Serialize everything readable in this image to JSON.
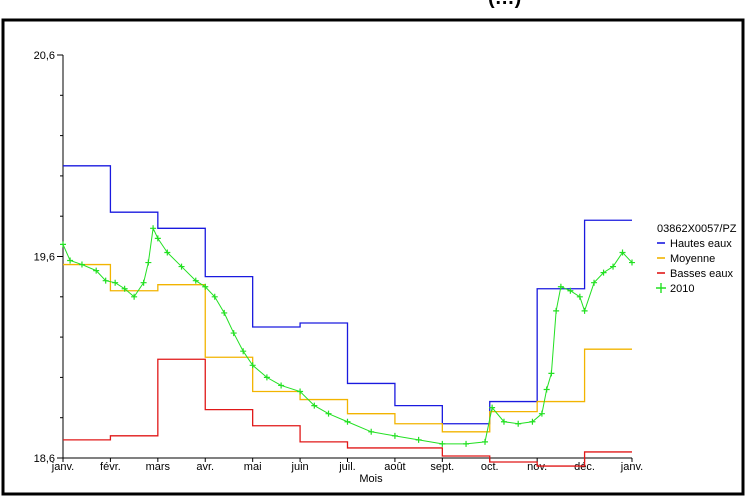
{
  "chart_data": {
    "type": "line",
    "title": "(…)",
    "xlabel": "Mois",
    "ylabel": "",
    "ylim": [
      18.6,
      20.6
    ],
    "yticks": [
      {
        "value": 18.6,
        "label": "18,6"
      },
      {
        "value": 19.6,
        "label": "19,6"
      },
      {
        "value": 20.6,
        "label": "20,6"
      }
    ],
    "x_month_labels": [
      "janv.",
      "févr.",
      "mars",
      "avr.",
      "mai",
      "juin",
      "juil.",
      "août",
      "sept.",
      "oct.",
      "nov.",
      "déc.",
      "janv."
    ],
    "legend_title": "03862X0057/PZ",
    "legend_position": "right",
    "series": [
      {
        "name": "Hautes eaux",
        "color": "#1a1adf",
        "style": "step",
        "x": [
          0,
          1,
          2,
          3,
          4,
          5,
          6,
          7,
          8,
          9,
          10,
          11,
          12
        ],
        "values": [
          20.05,
          19.82,
          19.74,
          19.5,
          19.25,
          19.27,
          18.97,
          18.86,
          18.77,
          18.88,
          19.44,
          19.78,
          19.78
        ]
      },
      {
        "name": "Moyenne",
        "color": "#f2b400",
        "style": "step",
        "x": [
          0,
          1,
          2,
          3,
          4,
          5,
          6,
          7,
          8,
          9,
          10,
          11,
          12
        ],
        "values": [
          19.56,
          19.43,
          19.46,
          19.1,
          18.93,
          18.89,
          18.82,
          18.77,
          18.73,
          18.83,
          18.88,
          19.14,
          19.14
        ]
      },
      {
        "name": "Basses eaux",
        "color": "#e01818",
        "style": "step",
        "x": [
          0,
          1,
          2,
          3,
          4,
          5,
          6,
          7,
          8,
          9,
          10,
          11,
          12
        ],
        "values": [
          18.69,
          18.71,
          19.09,
          18.84,
          18.76,
          18.68,
          18.65,
          18.65,
          18.61,
          18.58,
          18.56,
          18.63,
          18.63
        ]
      },
      {
        "name": "2010",
        "color": "#22e022",
        "style": "markers",
        "x": [
          0,
          0.15,
          0.4,
          0.7,
          0.9,
          1.1,
          1.3,
          1.5,
          1.7,
          1.8,
          1.9,
          2.0,
          2.2,
          2.5,
          2.8,
          3.0,
          3.2,
          3.4,
          3.6,
          3.8,
          4.0,
          4.3,
          4.6,
          5.0,
          5.3,
          5.6,
          6.0,
          6.5,
          7.0,
          7.5,
          8.0,
          8.5,
          8.9,
          9.05,
          9.3,
          9.6,
          9.9,
          10.1,
          10.2,
          10.3,
          10.4,
          10.5,
          10.7,
          10.9,
          11.0,
          11.2,
          11.4,
          11.6,
          11.8,
          12.0
        ],
        "values": [
          19.66,
          19.58,
          19.56,
          19.53,
          19.48,
          19.47,
          19.44,
          19.4,
          19.47,
          19.57,
          19.74,
          19.69,
          19.62,
          19.55,
          19.48,
          19.45,
          19.4,
          19.32,
          19.22,
          19.13,
          19.06,
          19.0,
          18.96,
          18.93,
          18.86,
          18.82,
          18.78,
          18.73,
          18.71,
          18.69,
          18.67,
          18.67,
          18.68,
          18.85,
          18.78,
          18.77,
          18.78,
          18.82,
          18.94,
          19.02,
          19.33,
          19.45,
          19.43,
          19.4,
          19.33,
          19.47,
          19.52,
          19.55,
          19.62,
          19.57
        ]
      }
    ]
  }
}
